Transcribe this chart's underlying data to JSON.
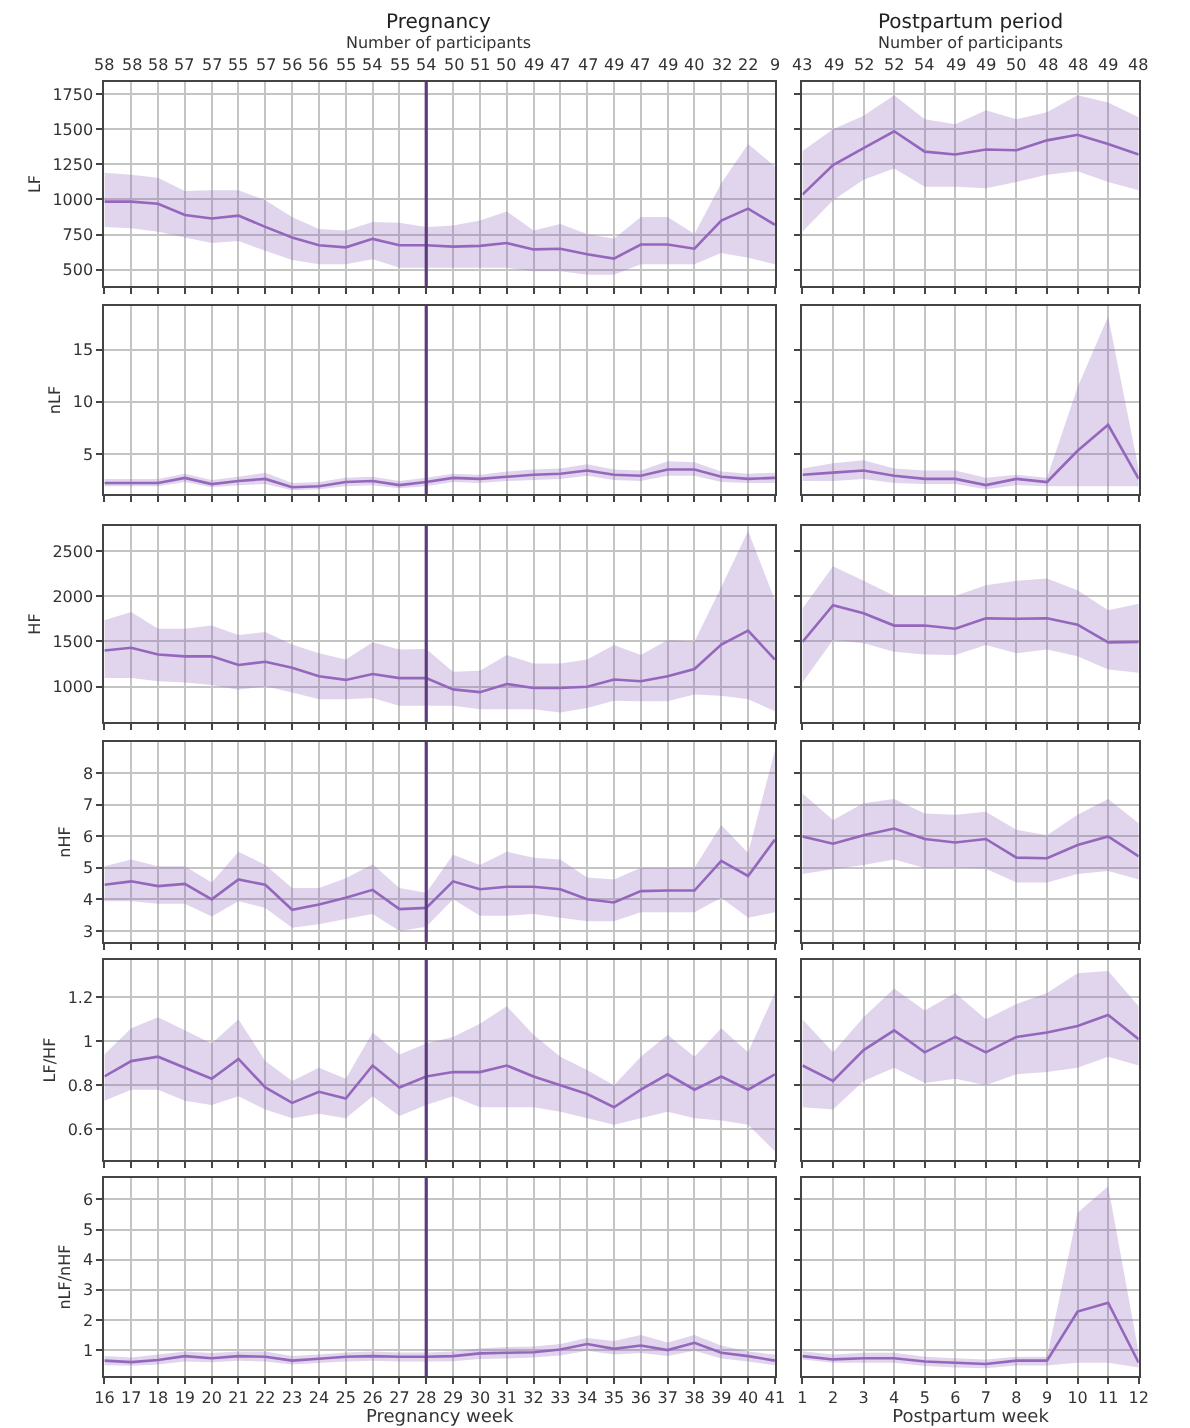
{
  "chart_data": [
    {
      "type": "line",
      "title": "Pregnancy",
      "x2label": "Number of participants",
      "ylabel": "LF",
      "x": [
        16,
        17,
        18,
        19,
        20,
        21,
        22,
        23,
        24,
        25,
        26,
        27,
        28,
        29,
        30,
        31,
        32,
        33,
        34,
        35,
        36,
        37,
        38,
        39,
        40,
        41
      ],
      "xlim": [
        16,
        41
      ],
      "xticks": [
        {
          "value": 16,
          "label": null
        },
        {
          "value": 17,
          "label": null
        },
        {
          "value": 18,
          "label": null
        },
        {
          "value": 19,
          "label": null
        },
        {
          "value": 20,
          "label": null
        },
        {
          "value": 21,
          "label": null
        },
        {
          "value": 22,
          "label": null
        },
        {
          "value": 23,
          "label": null
        },
        {
          "value": 24,
          "label": null
        },
        {
          "value": 25,
          "label": null
        },
        {
          "value": 26,
          "label": null
        },
        {
          "value": 27,
          "label": null
        },
        {
          "value": 28,
          "label": null
        },
        {
          "value": 29,
          "label": null
        },
        {
          "value": 30,
          "label": null
        },
        {
          "value": 31,
          "label": null
        },
        {
          "value": 32,
          "label": null
        },
        {
          "value": 33,
          "label": null
        },
        {
          "value": 34,
          "label": null
        },
        {
          "value": 35,
          "label": null
        },
        {
          "value": 36,
          "label": null
        },
        {
          "value": 37,
          "label": null
        },
        {
          "value": 38,
          "label": null
        },
        {
          "value": 39,
          "label": null
        },
        {
          "value": 40,
          "label": null
        },
        {
          "value": 41,
          "label": null
        }
      ],
      "annotations": [
        "58",
        "58",
        "58",
        "57",
        "57",
        "55",
        "57",
        "56",
        "56",
        "55",
        "54",
        "55",
        "54",
        "50",
        "51",
        "50",
        "49",
        "47",
        "47",
        "49",
        "47",
        "49",
        "40",
        "32",
        "22",
        "9"
      ],
      "ylim": [
        385,
        1835
      ],
      "yticks": [
        500,
        750,
        1000,
        1250,
        1500,
        1750
      ],
      "tick_labels": "y",
      "grid": true,
      "ref_lines": [
        {
          "axis": "x",
          "value": 28,
          "color": "#5c3c7c"
        }
      ],
      "series": [
        {
          "color": "#9467bd",
          "values": [
            985,
            985,
            970,
            890,
            865,
            885,
            805,
            730,
            675,
            660,
            720,
            675,
            675,
            665,
            670,
            690,
            645,
            650,
            610,
            580,
            680,
            680,
            650,
            850,
            935,
            820
          ],
          "upper": [
            1190,
            1175,
            1155,
            1060,
            1065,
            1065,
            995,
            875,
            790,
            780,
            840,
            835,
            805,
            815,
            850,
            915,
            780,
            825,
            755,
            720,
            875,
            875,
            755,
            1115,
            1395,
            1235
          ],
          "lower": [
            805,
            795,
            770,
            730,
            690,
            705,
            635,
            570,
            540,
            540,
            575,
            515,
            515,
            515,
            515,
            515,
            490,
            490,
            465,
            465,
            540,
            540,
            540,
            620,
            585,
            540
          ]
        }
      ]
    },
    {
      "type": "line",
      "title": "Postpartum period",
      "x2label": "Number of participants",
      "x": [
        1,
        2,
        3,
        4,
        5,
        6,
        7,
        8,
        9,
        10,
        11,
        12
      ],
      "xlim": [
        1,
        12
      ],
      "xticks": [
        {
          "value": 1,
          "label": null
        },
        {
          "value": 2,
          "label": null
        },
        {
          "value": 3,
          "label": null
        },
        {
          "value": 4,
          "label": null
        },
        {
          "value": 5,
          "label": null
        },
        {
          "value": 6,
          "label": null
        },
        {
          "value": 7,
          "label": null
        },
        {
          "value": 8,
          "label": null
        },
        {
          "value": 9,
          "label": null
        },
        {
          "value": 10,
          "label": null
        },
        {
          "value": 11,
          "label": null
        },
        {
          "value": 12,
          "label": null
        }
      ],
      "annotations": [
        "43",
        "49",
        "52",
        "52",
        "54",
        "49",
        "49",
        "50",
        "48",
        "48",
        "49",
        "48"
      ],
      "ylim": [
        385,
        1835
      ],
      "yticks": [
        {
          "value": 500,
          "label": null
        },
        {
          "value": 750,
          "label": null
        },
        {
          "value": 1000,
          "label": null
        },
        {
          "value": 1250,
          "label": null
        },
        {
          "value": 1500,
          "label": null
        },
        {
          "value": 1750,
          "label": null
        }
      ],
      "tick_labels": false,
      "grid": true,
      "series": [
        {
          "color": "#9467bd",
          "values": [
            1035,
            1245,
            1365,
            1485,
            1340,
            1320,
            1355,
            1350,
            1420,
            1460,
            1395,
            1320
          ],
          "upper": [
            1345,
            1500,
            1595,
            1740,
            1570,
            1535,
            1635,
            1570,
            1620,
            1740,
            1690,
            1585
          ],
          "lower": [
            770,
            995,
            1140,
            1220,
            1090,
            1090,
            1080,
            1125,
            1175,
            1200,
            1125,
            1065
          ]
        }
      ]
    },
    {
      "type": "line",
      "ylabel": "nLF",
      "x": [
        16,
        17,
        18,
        19,
        20,
        21,
        22,
        23,
        24,
        25,
        26,
        27,
        28,
        29,
        30,
        31,
        32,
        33,
        34,
        35,
        36,
        37,
        38,
        39,
        40,
        41
      ],
      "xlim": [
        16,
        41
      ],
      "xticks": [
        {
          "value": 16,
          "label": null
        },
        {
          "value": 17,
          "label": null
        },
        {
          "value": 18,
          "label": null
        },
        {
          "value": 19,
          "label": null
        },
        {
          "value": 20,
          "label": null
        },
        {
          "value": 21,
          "label": null
        },
        {
          "value": 22,
          "label": null
        },
        {
          "value": 23,
          "label": null
        },
        {
          "value": 24,
          "label": null
        },
        {
          "value": 25,
          "label": null
        },
        {
          "value": 26,
          "label": null
        },
        {
          "value": 27,
          "label": null
        },
        {
          "value": 28,
          "label": null
        },
        {
          "value": 29,
          "label": null
        },
        {
          "value": 30,
          "label": null
        },
        {
          "value": 31,
          "label": null
        },
        {
          "value": 32,
          "label": null
        },
        {
          "value": 33,
          "label": null
        },
        {
          "value": 34,
          "label": null
        },
        {
          "value": 35,
          "label": null
        },
        {
          "value": 36,
          "label": null
        },
        {
          "value": 37,
          "label": null
        },
        {
          "value": 38,
          "label": null
        },
        {
          "value": 39,
          "label": null
        },
        {
          "value": 40,
          "label": null
        },
        {
          "value": 41,
          "label": null
        }
      ],
      "ylim": [
        1.15,
        19.2
      ],
      "yticks": [
        5,
        10,
        15
      ],
      "tick_labels": "y",
      "grid": true,
      "ref_lines": [
        {
          "axis": "x",
          "value": 28,
          "color": "#5c3c7c"
        }
      ],
      "series": [
        {
          "color": "#9467bd",
          "values": [
            2.2,
            2.2,
            2.2,
            2.7,
            2.1,
            2.4,
            2.6,
            1.8,
            1.9,
            2.3,
            2.4,
            2.0,
            2.3,
            2.7,
            2.6,
            2.8,
            3.0,
            3.1,
            3.4,
            3.0,
            2.9,
            3.5,
            3.5,
            2.8,
            2.6,
            2.7
          ],
          "upper": [
            2.6,
            2.6,
            2.6,
            3.1,
            2.5,
            2.8,
            3.2,
            2.2,
            2.3,
            2.7,
            2.8,
            2.4,
            2.7,
            3.1,
            3.0,
            3.3,
            3.5,
            3.6,
            4.0,
            3.5,
            3.4,
            4.3,
            4.2,
            3.3,
            3.1,
            3.2
          ],
          "lower": [
            1.9,
            1.9,
            1.9,
            2.3,
            1.8,
            2.0,
            2.1,
            1.5,
            1.6,
            1.9,
            2.0,
            1.7,
            1.9,
            2.3,
            2.2,
            2.4,
            2.5,
            2.6,
            2.9,
            2.5,
            2.4,
            2.9,
            2.9,
            2.3,
            2.2,
            2.2
          ]
        }
      ]
    },
    {
      "type": "line",
      "x": [
        1,
        2,
        3,
        4,
        5,
        6,
        7,
        8,
        9,
        10,
        11,
        12
      ],
      "xlim": [
        1,
        12
      ],
      "xticks": [
        {
          "value": 1,
          "label": null
        },
        {
          "value": 2,
          "label": null
        },
        {
          "value": 3,
          "label": null
        },
        {
          "value": 4,
          "label": null
        },
        {
          "value": 5,
          "label": null
        },
        {
          "value": 6,
          "label": null
        },
        {
          "value": 7,
          "label": null
        },
        {
          "value": 8,
          "label": null
        },
        {
          "value": 9,
          "label": null
        },
        {
          "value": 10,
          "label": null
        },
        {
          "value": 11,
          "label": null
        },
        {
          "value": 12,
          "label": null
        }
      ],
      "ylim": [
        1.15,
        19.2
      ],
      "yticks": [
        {
          "value": 5,
          "label": null
        },
        {
          "value": 10,
          "label": null
        },
        {
          "value": 15,
          "label": null
        }
      ],
      "tick_labels": false,
      "grid": true,
      "series": [
        {
          "color": "#9467bd",
          "values": [
            3.0,
            3.2,
            3.4,
            2.9,
            2.6,
            2.6,
            2.0,
            2.6,
            2.3,
            5.3,
            7.8,
            2.6
          ],
          "upper": [
            3.6,
            4.1,
            4.4,
            3.6,
            3.4,
            3.4,
            2.7,
            3.0,
            2.7,
            11.4,
            18.2,
            3.5
          ],
          "lower": [
            2.4,
            2.4,
            2.6,
            2.2,
            2.1,
            2.1,
            1.6,
            2.0,
            1.9,
            1.9,
            1.9,
            1.9
          ]
        }
      ]
    },
    {
      "type": "line",
      "ylabel": "HF",
      "x": [
        16,
        17,
        18,
        19,
        20,
        21,
        22,
        23,
        24,
        25,
        26,
        27,
        28,
        29,
        30,
        31,
        32,
        33,
        34,
        35,
        36,
        37,
        38,
        39,
        40,
        41
      ],
      "xlim": [
        16,
        41
      ],
      "xticks": [
        {
          "value": 16,
          "label": null
        },
        {
          "value": 17,
          "label": null
        },
        {
          "value": 18,
          "label": null
        },
        {
          "value": 19,
          "label": null
        },
        {
          "value": 20,
          "label": null
        },
        {
          "value": 21,
          "label": null
        },
        {
          "value": 22,
          "label": null
        },
        {
          "value": 23,
          "label": null
        },
        {
          "value": 24,
          "label": null
        },
        {
          "value": 25,
          "label": null
        },
        {
          "value": 26,
          "label": null
        },
        {
          "value": 27,
          "label": null
        },
        {
          "value": 28,
          "label": null
        },
        {
          "value": 29,
          "label": null
        },
        {
          "value": 30,
          "label": null
        },
        {
          "value": 31,
          "label": null
        },
        {
          "value": 32,
          "label": null
        },
        {
          "value": 33,
          "label": null
        },
        {
          "value": 34,
          "label": null
        },
        {
          "value": 35,
          "label": null
        },
        {
          "value": 36,
          "label": null
        },
        {
          "value": 37,
          "label": null
        },
        {
          "value": 38,
          "label": null
        },
        {
          "value": 39,
          "label": null
        },
        {
          "value": 40,
          "label": null
        },
        {
          "value": 41,
          "label": null
        }
      ],
      "ylim": [
        610,
        2775
      ],
      "yticks": [
        1000,
        1500,
        2000,
        2500
      ],
      "tick_labels": "y",
      "grid": true,
      "ref_lines": [
        {
          "axis": "x",
          "value": 28,
          "color": "#5c3c7c"
        }
      ],
      "series": [
        {
          "color": "#9467bd",
          "values": [
            1400,
            1430,
            1355,
            1335,
            1335,
            1240,
            1275,
            1210,
            1115,
            1075,
            1140,
            1095,
            1095,
            970,
            940,
            1030,
            985,
            985,
            1000,
            1080,
            1060,
            1115,
            1195,
            1465,
            1620,
            1300
          ],
          "upper": [
            1735,
            1825,
            1640,
            1640,
            1675,
            1570,
            1605,
            1465,
            1370,
            1300,
            1490,
            1410,
            1415,
            1165,
            1175,
            1350,
            1255,
            1255,
            1300,
            1460,
            1350,
            1515,
            1500,
            2100,
            2720,
            1955
          ],
          "lower": [
            1095,
            1095,
            1060,
            1045,
            1020,
            965,
            1005,
            935,
            860,
            860,
            875,
            790,
            790,
            790,
            750,
            750,
            750,
            715,
            765,
            845,
            840,
            840,
            915,
            900,
            860,
            730
          ]
        }
      ]
    },
    {
      "type": "line",
      "x": [
        1,
        2,
        3,
        4,
        5,
        6,
        7,
        8,
        9,
        10,
        11,
        12
      ],
      "xlim": [
        1,
        12
      ],
      "xticks": [
        {
          "value": 1,
          "label": null
        },
        {
          "value": 2,
          "label": null
        },
        {
          "value": 3,
          "label": null
        },
        {
          "value": 4,
          "label": null
        },
        {
          "value": 5,
          "label": null
        },
        {
          "value": 6,
          "label": null
        },
        {
          "value": 7,
          "label": null
        },
        {
          "value": 8,
          "label": null
        },
        {
          "value": 9,
          "label": null
        },
        {
          "value": 10,
          "label": null
        },
        {
          "value": 11,
          "label": null
        },
        {
          "value": 12,
          "label": null
        }
      ],
      "ylim": [
        610,
        2775
      ],
      "yticks": [
        {
          "value": 1000,
          "label": null
        },
        {
          "value": 1500,
          "label": null
        },
        {
          "value": 2000,
          "label": null
        },
        {
          "value": 2500,
          "label": null
        }
      ],
      "tick_labels": false,
      "grid": true,
      "series": [
        {
          "color": "#9467bd",
          "values": [
            1495,
            1900,
            1810,
            1675,
            1675,
            1640,
            1755,
            1750,
            1755,
            1685,
            1490,
            1495
          ],
          "upper": [
            1865,
            2330,
            2170,
            2005,
            2005,
            2005,
            2120,
            2170,
            2195,
            2065,
            1845,
            1915
          ],
          "lower": [
            1045,
            1515,
            1480,
            1385,
            1355,
            1350,
            1460,
            1370,
            1410,
            1335,
            1190,
            1155
          ]
        }
      ]
    },
    {
      "type": "line",
      "ylabel": "nHF",
      "x": [
        16,
        17,
        18,
        19,
        20,
        21,
        22,
        23,
        24,
        25,
        26,
        27,
        28,
        29,
        30,
        31,
        32,
        33,
        34,
        35,
        36,
        37,
        38,
        39,
        40,
        41
      ],
      "xlim": [
        16,
        41
      ],
      "xticks": [
        {
          "value": 16,
          "label": null
        },
        {
          "value": 17,
          "label": null
        },
        {
          "value": 18,
          "label": null
        },
        {
          "value": 19,
          "label": null
        },
        {
          "value": 20,
          "label": null
        },
        {
          "value": 21,
          "label": null
        },
        {
          "value": 22,
          "label": null
        },
        {
          "value": 23,
          "label": null
        },
        {
          "value": 24,
          "label": null
        },
        {
          "value": 25,
          "label": null
        },
        {
          "value": 26,
          "label": null
        },
        {
          "value": 27,
          "label": null
        },
        {
          "value": 28,
          "label": null
        },
        {
          "value": 29,
          "label": null
        },
        {
          "value": 30,
          "label": null
        },
        {
          "value": 31,
          "label": null
        },
        {
          "value": 32,
          "label": null
        },
        {
          "value": 33,
          "label": null
        },
        {
          "value": 34,
          "label": null
        },
        {
          "value": 35,
          "label": null
        },
        {
          "value": 36,
          "label": null
        },
        {
          "value": 37,
          "label": null
        },
        {
          "value": 38,
          "label": null
        },
        {
          "value": 39,
          "label": null
        },
        {
          "value": 40,
          "label": null
        },
        {
          "value": 41,
          "label": null
        }
      ],
      "ylim": [
        2.65,
        8.98
      ],
      "yticks": [
        3,
        4,
        5,
        6,
        7,
        8
      ],
      "tick_labels": "y",
      "grid": true,
      "ref_lines": [
        {
          "axis": "x",
          "value": 28,
          "color": "#5c3c7c"
        }
      ],
      "series": [
        {
          "color": "#9467bd",
          "values": [
            4.46,
            4.57,
            4.42,
            4.49,
            4.0,
            4.63,
            4.46,
            3.67,
            3.84,
            4.05,
            4.3,
            3.69,
            3.73,
            4.57,
            4.32,
            4.4,
            4.4,
            4.32,
            4.0,
            3.9,
            4.26,
            4.28,
            4.28,
            5.22,
            4.74,
            5.89
          ],
          "upper": [
            5.05,
            5.26,
            5.05,
            5.05,
            4.53,
            5.51,
            5.09,
            4.36,
            4.36,
            4.67,
            5.11,
            4.36,
            4.21,
            5.41,
            5.09,
            5.51,
            5.32,
            5.26,
            4.69,
            4.63,
            5.0,
            5.0,
            5.0,
            6.35,
            5.47,
            8.71
          ],
          "lower": [
            3.94,
            3.94,
            3.86,
            3.86,
            3.46,
            3.94,
            3.73,
            3.1,
            3.21,
            3.38,
            3.54,
            3.0,
            3.13,
            4.0,
            3.48,
            3.48,
            3.54,
            3.42,
            3.31,
            3.31,
            3.59,
            3.59,
            3.59,
            4.05,
            3.42,
            3.59
          ]
        }
      ]
    },
    {
      "type": "line",
      "x": [
        1,
        2,
        3,
        4,
        5,
        6,
        7,
        8,
        9,
        10,
        11,
        12
      ],
      "xlim": [
        1,
        12
      ],
      "xticks": [
        {
          "value": 1,
          "label": null
        },
        {
          "value": 2,
          "label": null
        },
        {
          "value": 3,
          "label": null
        },
        {
          "value": 4,
          "label": null
        },
        {
          "value": 5,
          "label": null
        },
        {
          "value": 6,
          "label": null
        },
        {
          "value": 7,
          "label": null
        },
        {
          "value": 8,
          "label": null
        },
        {
          "value": 9,
          "label": null
        },
        {
          "value": 10,
          "label": null
        },
        {
          "value": 11,
          "label": null
        },
        {
          "value": 12,
          "label": null
        }
      ],
      "ylim": [
        2.65,
        8.98
      ],
      "yticks": [
        {
          "value": 3,
          "label": null
        },
        {
          "value": 4,
          "label": null
        },
        {
          "value": 5,
          "label": null
        },
        {
          "value": 6,
          "label": null
        },
        {
          "value": 7,
          "label": null
        },
        {
          "value": 8,
          "label": null
        }
      ],
      "tick_labels": false,
      "grid": true,
      "series": [
        {
          "color": "#9467bd",
          "values": [
            5.99,
            5.76,
            6.03,
            6.24,
            5.91,
            5.8,
            5.91,
            5.32,
            5.3,
            5.72,
            5.99,
            5.36
          ],
          "upper": [
            7.35,
            6.51,
            7.04,
            7.18,
            6.72,
            6.68,
            6.77,
            6.2,
            6.03,
            6.68,
            7.18,
            6.41
          ],
          "lower": [
            4.8,
            4.95,
            5.09,
            5.26,
            4.99,
            5.01,
            4.97,
            4.53,
            4.53,
            4.8,
            4.9,
            4.63
          ]
        }
      ]
    },
    {
      "type": "line",
      "ylabel": "LF/HF",
      "x": [
        16,
        17,
        18,
        19,
        20,
        21,
        22,
        23,
        24,
        25,
        26,
        27,
        28,
        29,
        30,
        31,
        32,
        33,
        34,
        35,
        36,
        37,
        38,
        39,
        40,
        41
      ],
      "xlim": [
        16,
        41
      ],
      "xticks": [
        {
          "value": 16,
          "label": null
        },
        {
          "value": 17,
          "label": null
        },
        {
          "value": 18,
          "label": null
        },
        {
          "value": 19,
          "label": null
        },
        {
          "value": 20,
          "label": null
        },
        {
          "value": 21,
          "label": null
        },
        {
          "value": 22,
          "label": null
        },
        {
          "value": 23,
          "label": null
        },
        {
          "value": 24,
          "label": null
        },
        {
          "value": 25,
          "label": null
        },
        {
          "value": 26,
          "label": null
        },
        {
          "value": 27,
          "label": null
        },
        {
          "value": 28,
          "label": null
        },
        {
          "value": 29,
          "label": null
        },
        {
          "value": 30,
          "label": null
        },
        {
          "value": 31,
          "label": null
        },
        {
          "value": 32,
          "label": null
        },
        {
          "value": 33,
          "label": null
        },
        {
          "value": 34,
          "label": null
        },
        {
          "value": 35,
          "label": null
        },
        {
          "value": 36,
          "label": null
        },
        {
          "value": 37,
          "label": null
        },
        {
          "value": 38,
          "label": null
        },
        {
          "value": 39,
          "label": null
        },
        {
          "value": 40,
          "label": null
        },
        {
          "value": 41,
          "label": null
        }
      ],
      "ylim": [
        0.46,
        1.37
      ],
      "yticks": [
        0.6,
        0.8,
        1,
        1.2
      ],
      "tick_labels": "y",
      "grid": true,
      "ref_lines": [
        {
          "axis": "x",
          "value": 28,
          "color": "#5c3c7c"
        }
      ],
      "series": [
        {
          "color": "#9467bd",
          "values": [
            0.84,
            0.91,
            0.93,
            0.88,
            0.83,
            0.92,
            0.79,
            0.72,
            0.77,
            0.74,
            0.89,
            0.79,
            0.84,
            0.86,
            0.86,
            0.89,
            0.84,
            0.8,
            0.76,
            0.7,
            0.78,
            0.85,
            0.78,
            0.84,
            0.78,
            0.85
          ],
          "upper": [
            0.94,
            1.06,
            1.11,
            1.05,
            0.99,
            1.1,
            0.91,
            0.82,
            0.88,
            0.83,
            1.04,
            0.94,
            0.99,
            1.02,
            1.08,
            1.16,
            1.03,
            0.93,
            0.87,
            0.8,
            0.93,
            1.03,
            0.93,
            1.06,
            0.95,
            1.22
          ],
          "lower": [
            0.73,
            0.78,
            0.78,
            0.73,
            0.71,
            0.75,
            0.69,
            0.65,
            0.67,
            0.65,
            0.75,
            0.66,
            0.71,
            0.75,
            0.7,
            0.7,
            0.7,
            0.68,
            0.65,
            0.62,
            0.65,
            0.68,
            0.65,
            0.64,
            0.62,
            0.5
          ]
        }
      ]
    },
    {
      "type": "line",
      "x": [
        1,
        2,
        3,
        4,
        5,
        6,
        7,
        8,
        9,
        10,
        11,
        12
      ],
      "xlim": [
        1,
        12
      ],
      "xticks": [
        {
          "value": 1,
          "label": null
        },
        {
          "value": 2,
          "label": null
        },
        {
          "value": 3,
          "label": null
        },
        {
          "value": 4,
          "label": null
        },
        {
          "value": 5,
          "label": null
        },
        {
          "value": 6,
          "label": null
        },
        {
          "value": 7,
          "label": null
        },
        {
          "value": 8,
          "label": null
        },
        {
          "value": 9,
          "label": null
        },
        {
          "value": 10,
          "label": null
        },
        {
          "value": 11,
          "label": null
        },
        {
          "value": 12,
          "label": null
        }
      ],
      "ylim": [
        0.46,
        1.37
      ],
      "yticks": [
        {
          "value": 0.6,
          "label": null
        },
        {
          "value": 0.8,
          "label": null
        },
        {
          "value": 1,
          "label": null
        },
        {
          "value": 1.2,
          "label": null
        }
      ],
      "tick_labels": false,
      "grid": true,
      "series": [
        {
          "color": "#9467bd",
          "values": [
            0.89,
            0.82,
            0.96,
            1.05,
            0.95,
            1.02,
            0.95,
            1.02,
            1.04,
            1.07,
            1.12,
            1.01
          ],
          "upper": [
            1.1,
            0.95,
            1.11,
            1.24,
            1.14,
            1.22,
            1.1,
            1.17,
            1.22,
            1.31,
            1.32,
            1.16
          ],
          "lower": [
            0.7,
            0.69,
            0.82,
            0.88,
            0.81,
            0.83,
            0.8,
            0.85,
            0.86,
            0.88,
            0.93,
            0.89
          ]
        }
      ]
    },
    {
      "type": "line",
      "ylabel": "nLF/nHF",
      "xlabel": "Pregnancy week",
      "x": [
        16,
        17,
        18,
        19,
        20,
        21,
        22,
        23,
        24,
        25,
        26,
        27,
        28,
        29,
        30,
        31,
        32,
        33,
        34,
        35,
        36,
        37,
        38,
        39,
        40,
        41
      ],
      "xlim": [
        16,
        41
      ],
      "xticks": [
        16,
        17,
        18,
        19,
        20,
        21,
        22,
        23,
        24,
        25,
        26,
        27,
        28,
        29,
        30,
        31,
        32,
        33,
        34,
        35,
        36,
        37,
        38,
        39,
        40,
        41
      ],
      "ylim": [
        0.14,
        6.71
      ],
      "yticks": [
        1,
        2,
        3,
        4,
        5,
        6
      ],
      "grid": true,
      "ref_lines": [
        {
          "axis": "x",
          "value": 28,
          "color": "#5c3c7c"
        }
      ],
      "series": [
        {
          "color": "#9467bd",
          "values": [
            0.65,
            0.6,
            0.67,
            0.8,
            0.73,
            0.8,
            0.78,
            0.65,
            0.71,
            0.78,
            0.8,
            0.78,
            0.78,
            0.8,
            0.89,
            0.91,
            0.93,
            1.02,
            1.2,
            1.04,
            1.15,
            1.0,
            1.24,
            0.91,
            0.8,
            0.65
          ],
          "upper": [
            0.8,
            0.75,
            0.85,
            0.95,
            0.9,
            0.95,
            0.95,
            0.8,
            0.85,
            0.92,
            0.95,
            0.92,
            0.92,
            0.95,
            1.05,
            1.1,
            1.12,
            1.2,
            1.4,
            1.3,
            1.5,
            1.25,
            1.5,
            1.15,
            0.95,
            0.85
          ],
          "lower": [
            0.5,
            0.48,
            0.52,
            0.62,
            0.6,
            0.65,
            0.62,
            0.52,
            0.57,
            0.62,
            0.65,
            0.62,
            0.62,
            0.63,
            0.7,
            0.72,
            0.75,
            0.82,
            0.98,
            0.85,
            0.9,
            0.8,
            0.98,
            0.72,
            0.62,
            0.5
          ]
        }
      ]
    },
    {
      "type": "line",
      "xlabel": "Postpartum week",
      "x": [
        1,
        2,
        3,
        4,
        5,
        6,
        7,
        8,
        9,
        10,
        11,
        12
      ],
      "xlim": [
        1,
        12
      ],
      "xticks": [
        1,
        2,
        3,
        4,
        5,
        6,
        7,
        8,
        9,
        10,
        11,
        12
      ],
      "ylim": [
        0.14,
        6.71
      ],
      "yticks": [
        {
          "value": 1,
          "label": null
        },
        {
          "value": 2,
          "label": null
        },
        {
          "value": 3,
          "label": null
        },
        {
          "value": 4,
          "label": null
        },
        {
          "value": 5,
          "label": null
        },
        {
          "value": 6,
          "label": null
        }
      ],
      "tick_labels": "x",
      "grid": true,
      "series": [
        {
          "color": "#9467bd",
          "values": [
            0.8,
            0.69,
            0.73,
            0.73,
            0.62,
            0.58,
            0.54,
            0.65,
            0.65,
            2.28,
            2.57,
            0.58
          ],
          "upper": [
            0.96,
            0.85,
            0.91,
            0.91,
            0.78,
            0.73,
            0.69,
            0.78,
            0.78,
            5.56,
            6.44,
            0.91
          ],
          "lower": [
            0.69,
            0.58,
            0.58,
            0.58,
            0.47,
            0.42,
            0.4,
            0.49,
            0.49,
            0.58,
            0.58,
            0.42
          ]
        }
      ]
    }
  ]
}
